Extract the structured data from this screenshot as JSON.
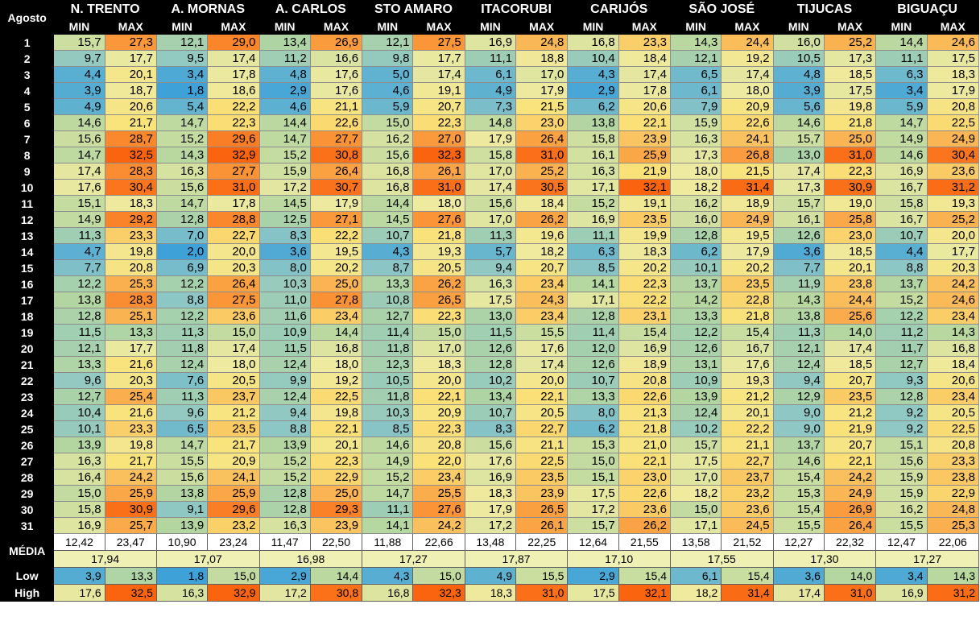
{
  "header": {
    "corner_label": "Agosto",
    "min_label": "MIN",
    "max_label": "MAX",
    "stations": [
      "N. TRENTO",
      "A. MORNAS",
      "A. CARLOS",
      "STO AMARO",
      "ITACORUBI",
      "CARIJÓS",
      "SÃO JOSÉ",
      "TIJUCAS",
      "BIGUAÇU"
    ]
  },
  "days": [
    {
      "day": "1",
      "v": [
        "15,7",
        "27,3",
        "12,1",
        "29,0",
        "13,4",
        "26,9",
        "12,1",
        "27,5",
        "16,9",
        "24,8",
        "16,8",
        "23,3",
        "14,3",
        "24,4",
        "16,0",
        "25,2",
        "14,4",
        "24,6"
      ]
    },
    {
      "day": "2",
      "v": [
        "9,7",
        "17,7",
        "9,5",
        "17,4",
        "11,2",
        "16,6",
        "9,8",
        "17,7",
        "11,1",
        "18,8",
        "10,4",
        "18,4",
        "12,1",
        "19,2",
        "10,5",
        "17,3",
        "11,1",
        "17,5"
      ]
    },
    {
      "day": "3",
      "v": [
        "4,4",
        "20,1",
        "3,4",
        "17,8",
        "4,8",
        "17,6",
        "5,0",
        "17,4",
        "6,1",
        "17,0",
        "4,3",
        "17,4",
        "6,5",
        "17,4",
        "4,8",
        "18,5",
        "6,3",
        "18,3"
      ]
    },
    {
      "day": "4",
      "v": [
        "3,9",
        "18,7",
        "1,8",
        "18,6",
        "2,9",
        "17,6",
        "4,6",
        "19,1",
        "4,9",
        "17,9",
        "2,9",
        "17,8",
        "6,1",
        "18,0",
        "3,9",
        "17,5",
        "3,4",
        "17,9"
      ]
    },
    {
      "day": "5",
      "v": [
        "4,9",
        "20,6",
        "5,4",
        "22,2",
        "4,6",
        "21,1",
        "5,9",
        "20,7",
        "7,3",
        "21,5",
        "6,2",
        "20,6",
        "7,9",
        "20,9",
        "5,6",
        "19,8",
        "5,9",
        "20,8"
      ]
    },
    {
      "day": "6",
      "v": [
        "14,6",
        "21,7",
        "14,7",
        "22,3",
        "14,4",
        "22,6",
        "15,0",
        "22,3",
        "14,8",
        "23,0",
        "13,8",
        "22,1",
        "15,9",
        "22,6",
        "14,6",
        "21,8",
        "14,7",
        "22,5"
      ]
    },
    {
      "day": "7",
      "v": [
        "15,6",
        "28,7",
        "15,2",
        "29,6",
        "14,7",
        "27,7",
        "16,2",
        "27,0",
        "17,9",
        "26,4",
        "15,8",
        "23,9",
        "16,3",
        "24,1",
        "15,7",
        "25,0",
        "14,9",
        "24,9"
      ]
    },
    {
      "day": "8",
      "v": [
        "14,7",
        "32,5",
        "14,3",
        "32,9",
        "15,2",
        "30,8",
        "15,6",
        "32,3",
        "15,8",
        "31,0",
        "16,1",
        "25,9",
        "17,3",
        "26,8",
        "13,0",
        "31,0",
        "14,6",
        "30,4"
      ]
    },
    {
      "day": "9",
      "v": [
        "17,4",
        "28,3",
        "16,3",
        "27,7",
        "15,9",
        "26,4",
        "16,8",
        "26,1",
        "17,0",
        "25,2",
        "16,3",
        "21,9",
        "18,0",
        "21,5",
        "17,4",
        "22,3",
        "16,9",
        "23,6"
      ]
    },
    {
      "day": "10",
      "v": [
        "17,6",
        "30,4",
        "15,6",
        "31,0",
        "17,2",
        "30,7",
        "16,8",
        "31,0",
        "17,4",
        "30,5",
        "17,1",
        "32,1",
        "18,2",
        "31,4",
        "17,3",
        "30,9",
        "16,7",
        "31,2"
      ]
    },
    {
      "day": "11",
      "v": [
        "15,1",
        "18,3",
        "14,7",
        "17,8",
        "14,5",
        "17,9",
        "14,4",
        "18,0",
        "15,6",
        "18,4",
        "15,2",
        "19,1",
        "16,2",
        "18,9",
        "15,7",
        "19,0",
        "15,8",
        "19,3"
      ]
    },
    {
      "day": "12",
      "v": [
        "14,9",
        "29,2",
        "12,8",
        "28,8",
        "12,5",
        "27,1",
        "14,5",
        "27,6",
        "17,0",
        "26,2",
        "16,9",
        "23,5",
        "16,0",
        "24,9",
        "16,1",
        "25,8",
        "16,7",
        "25,2"
      ]
    },
    {
      "day": "13",
      "v": [
        "11,3",
        "23,3",
        "7,0",
        "22,7",
        "8,3",
        "22,2",
        "10,7",
        "21,8",
        "11,3",
        "19,6",
        "11,1",
        "19,9",
        "12,8",
        "19,5",
        "12,6",
        "23,0",
        "10,7",
        "20,0"
      ]
    },
    {
      "day": "14",
      "v": [
        "4,7",
        "19,8",
        "2,0",
        "20,0",
        "3,6",
        "19,5",
        "4,3",
        "19,3",
        "5,7",
        "18,2",
        "6,3",
        "18,3",
        "6,2",
        "17,9",
        "3,6",
        "18,5",
        "4,4",
        "17,7"
      ]
    },
    {
      "day": "15",
      "v": [
        "7,7",
        "20,8",
        "6,9",
        "20,3",
        "8,0",
        "20,2",
        "8,7",
        "20,5",
        "9,4",
        "20,7",
        "8,5",
        "20,2",
        "10,1",
        "20,2",
        "7,7",
        "20,1",
        "8,8",
        "20,3"
      ]
    },
    {
      "day": "16",
      "v": [
        "12,2",
        "25,3",
        "12,2",
        "26,4",
        "10,3",
        "25,0",
        "13,3",
        "26,2",
        "16,3",
        "23,4",
        "14,1",
        "22,3",
        "13,7",
        "23,5",
        "11,9",
        "23,8",
        "13,7",
        "24,2"
      ]
    },
    {
      "day": "17",
      "v": [
        "13,8",
        "28,3",
        "8,8",
        "27,5",
        "11,0",
        "27,8",
        "10,8",
        "26,5",
        "17,5",
        "24,3",
        "17,1",
        "22,2",
        "14,2",
        "22,8",
        "14,3",
        "24,4",
        "15,2",
        "24,6"
      ]
    },
    {
      "day": "18",
      "v": [
        "12,8",
        "25,1",
        "12,2",
        "23,6",
        "11,6",
        "23,4",
        "12,7",
        "22,3",
        "13,0",
        "23,4",
        "12,8",
        "23,1",
        "13,3",
        "21,8",
        "13,8",
        "25,6",
        "12,2",
        "23,4"
      ]
    },
    {
      "day": "19",
      "v": [
        "11,5",
        "13,3",
        "11,3",
        "15,0",
        "10,9",
        "14,4",
        "11,4",
        "15,0",
        "11,5",
        "15,5",
        "11,4",
        "15,4",
        "12,2",
        "15,4",
        "11,3",
        "14,0",
        "11,2",
        "14,3"
      ]
    },
    {
      "day": "20",
      "v": [
        "12,1",
        "17,7",
        "11,8",
        "17,4",
        "11,5",
        "16,8",
        "11,8",
        "17,0",
        "12,6",
        "17,6",
        "12,0",
        "16,9",
        "12,6",
        "16,7",
        "12,1",
        "17,4",
        "11,7",
        "16,8"
      ]
    },
    {
      "day": "21",
      "v": [
        "13,3",
        "21,6",
        "12,4",
        "18,0",
        "12,4",
        "18,0",
        "12,3",
        "18,3",
        "12,8",
        "17,4",
        "12,6",
        "18,9",
        "13,1",
        "17,6",
        "12,4",
        "18,5",
        "12,7",
        "18,4"
      ]
    },
    {
      "day": "22",
      "v": [
        "9,6",
        "20,3",
        "7,6",
        "20,5",
        "9,9",
        "19,2",
        "10,5",
        "20,0",
        "10,2",
        "20,0",
        "10,7",
        "20,8",
        "10,9",
        "19,3",
        "9,4",
        "20,7",
        "9,3",
        "20,6"
      ]
    },
    {
      "day": "23",
      "v": [
        "12,7",
        "25,4",
        "11,3",
        "23,7",
        "12,4",
        "22,5",
        "11,8",
        "22,1",
        "13,4",
        "22,1",
        "13,3",
        "22,6",
        "13,9",
        "21,2",
        "12,9",
        "23,5",
        "12,8",
        "23,4"
      ]
    },
    {
      "day": "24",
      "v": [
        "10,4",
        "21,6",
        "9,6",
        "21,2",
        "9,4",
        "19,8",
        "10,3",
        "20,9",
        "10,7",
        "20,5",
        "8,0",
        "21,3",
        "12,4",
        "20,1",
        "9,0",
        "21,2",
        "9,2",
        "20,5"
      ]
    },
    {
      "day": "25",
      "v": [
        "10,1",
        "23,3",
        "6,5",
        "23,5",
        "8,8",
        "22,1",
        "8,5",
        "22,3",
        "8,3",
        "22,7",
        "6,2",
        "21,8",
        "10,2",
        "22,2",
        "9,0",
        "21,9",
        "9,2",
        "22,5"
      ]
    },
    {
      "day": "26",
      "v": [
        "13,9",
        "19,8",
        "14,7",
        "21,7",
        "13,9",
        "20,1",
        "14,6",
        "20,8",
        "15,6",
        "21,1",
        "15,3",
        "21,0",
        "15,7",
        "21,1",
        "13,7",
        "20,7",
        "15,1",
        "20,8"
      ]
    },
    {
      "day": "27",
      "v": [
        "16,3",
        "21,7",
        "15,5",
        "20,9",
        "15,2",
        "22,3",
        "14,9",
        "22,0",
        "17,6",
        "22,5",
        "15,0",
        "22,1",
        "17,5",
        "22,7",
        "14,6",
        "22,1",
        "15,6",
        "23,3"
      ]
    },
    {
      "day": "28",
      "v": [
        "16,4",
        "24,2",
        "15,6",
        "24,1",
        "15,2",
        "22,9",
        "15,2",
        "23,4",
        "16,9",
        "23,5",
        "15,1",
        "23,0",
        "17,0",
        "23,7",
        "15,4",
        "24,2",
        "15,9",
        "23,8"
      ]
    },
    {
      "day": "29",
      "v": [
        "15,0",
        "25,9",
        "13,8",
        "25,9",
        "12,8",
        "25,0",
        "14,7",
        "25,5",
        "18,3",
        "23,9",
        "17,5",
        "22,6",
        "18,2",
        "23,2",
        "15,3",
        "24,9",
        "15,9",
        "22,9"
      ]
    },
    {
      "day": "30",
      "v": [
        "15,8",
        "30,9",
        "9,1",
        "29,6",
        "12,8",
        "29,3",
        "11,1",
        "27,6",
        "17,9",
        "26,5",
        "17,2",
        "23,6",
        "15,0",
        "23,6",
        "15,4",
        "26,9",
        "16,2",
        "24,8"
      ]
    },
    {
      "day": "31",
      "v": [
        "16,9",
        "25,7",
        "13,9",
        "23,2",
        "16,3",
        "23,9",
        "14,1",
        "24,2",
        "17,2",
        "26,1",
        "15,7",
        "26,2",
        "17,1",
        "24,5",
        "15,5",
        "26,4",
        "15,5",
        "25,3"
      ]
    }
  ],
  "summary": {
    "media_label": "MÉDIA",
    "low_label": "Low",
    "high_label": "High",
    "avg": [
      "12,42",
      "23,47",
      "10,90",
      "23,24",
      "11,47",
      "22,50",
      "11,88",
      "22,66",
      "13,48",
      "22,25",
      "12,64",
      "21,55",
      "13,58",
      "21,52",
      "12,27",
      "22,32",
      "12,47",
      "22,06"
    ],
    "avg2": [
      "17,94",
      "17,07",
      "16,98",
      "17,27",
      "17,87",
      "17,10",
      "17,55",
      "17,30",
      "17,27"
    ],
    "low": [
      "3,9",
      "13,3",
      "1,8",
      "15,0",
      "2,9",
      "14,4",
      "4,3",
      "15,0",
      "4,9",
      "15,5",
      "2,9",
      "15,4",
      "6,1",
      "15,4",
      "3,6",
      "14,0",
      "3,4",
      "14,3"
    ],
    "high": [
      "17,6",
      "32,5",
      "16,3",
      "32,9",
      "17,2",
      "30,8",
      "16,8",
      "32,3",
      "18,3",
      "31,0",
      "17,5",
      "32,1",
      "18,2",
      "31,4",
      "17,4",
      "31,0",
      "16,9",
      "31,2"
    ]
  },
  "colors": {
    "scale_note": "Cell background follows a blue-green-yellow-orange heat scale by value",
    "min_blue": "#3ea2d9",
    "mid_green": "#a9d3a4",
    "mid_yellow": "#f7e98a",
    "max_orange": "#fa6e12"
  }
}
